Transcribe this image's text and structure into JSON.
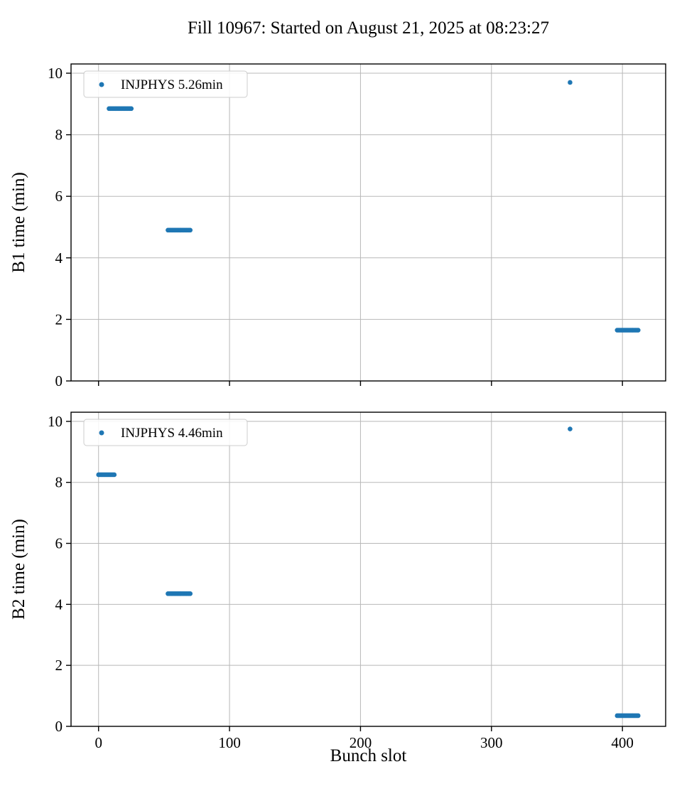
{
  "title": "Fill 10967: Started on August 21, 2025 at 08:23:27",
  "xlabel": "Bunch slot",
  "colors": {
    "marker": "#1f77b4",
    "grid": "#b8b8b8",
    "axis": "#000000",
    "legend_border": "#cccccc",
    "background": "#ffffff"
  },
  "chart_data": [
    {
      "type": "scatter",
      "ylabel": "B1 time (min)",
      "legend": "INJPHYS 5.26min",
      "legend_position": "upper left",
      "xlim": [
        -21,
        433
      ],
      "ylim": [
        0,
        10.3
      ],
      "xticks": [
        0,
        100,
        200,
        300,
        400
      ],
      "yticks": [
        0,
        2,
        4,
        6,
        8,
        10
      ],
      "grid": true,
      "show_x_tick_labels": false,
      "clusters": [
        {
          "x_start": 8,
          "x_end": 25,
          "step": 1,
          "y": 8.85
        },
        {
          "x_start": 53,
          "x_end": 70,
          "step": 1,
          "y": 4.9
        },
        {
          "x_start": 360,
          "x_end": 360,
          "step": 1,
          "y": 9.7
        },
        {
          "x_start": 396,
          "x_end": 412,
          "step": 1,
          "y": 1.65
        }
      ]
    },
    {
      "type": "scatter",
      "ylabel": "B2 time (min)",
      "legend": "INJPHYS 4.46min",
      "legend_position": "upper left",
      "xlim": [
        -21,
        433
      ],
      "ylim": [
        0,
        10.3
      ],
      "xticks": [
        0,
        100,
        200,
        300,
        400
      ],
      "yticks": [
        0,
        2,
        4,
        6,
        8,
        10
      ],
      "grid": true,
      "show_x_tick_labels": true,
      "clusters": [
        {
          "x_start": 0,
          "x_end": 12,
          "step": 1,
          "y": 8.25
        },
        {
          "x_start": 53,
          "x_end": 70,
          "step": 1,
          "y": 4.35
        },
        {
          "x_start": 360,
          "x_end": 360,
          "step": 1,
          "y": 9.75
        },
        {
          "x_start": 396,
          "x_end": 412,
          "step": 1,
          "y": 0.35
        }
      ]
    }
  ]
}
